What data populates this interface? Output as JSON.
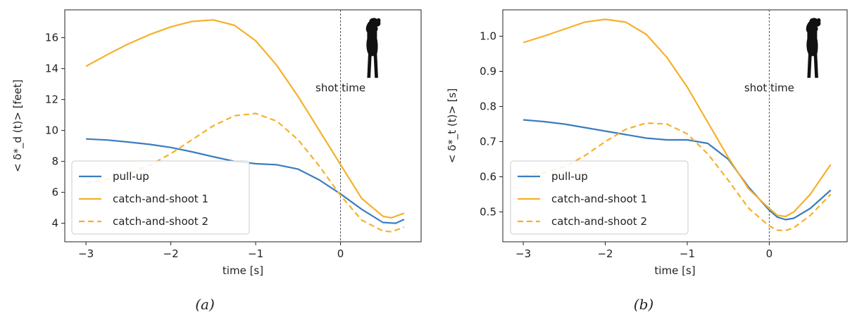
{
  "figure": {
    "captions": [
      "(a)",
      "(b)"
    ]
  },
  "colors": {
    "pull_up": "#3a7dbf",
    "catch_and_shoot": "#f6b02a",
    "axis": "#222222",
    "shot_line": "#555555"
  },
  "icons": [
    "player-silhouette-icon"
  ],
  "chart_data": [
    {
      "type": "line",
      "title": "",
      "xlabel": "time [s]",
      "ylabel": "< δ*_d (t)> [feet]",
      "xlim": [
        -3.25,
        0.95
      ],
      "ylim": [
        2.8,
        17.8
      ],
      "xticks": [
        -3,
        -2,
        -1,
        0
      ],
      "yticks": [
        4,
        6,
        8,
        10,
        12,
        14,
        16
      ],
      "xtick_labels": [
        "−3",
        "−2",
        "−1",
        "0"
      ],
      "ytick_labels": [
        "4",
        "6",
        "8",
        "10",
        "12",
        "14",
        "16"
      ],
      "grid": false,
      "legend": "lower-left",
      "annotation": {
        "text": "shot time",
        "x": 0
      },
      "series": [
        {
          "name": "pull-up",
          "style": "solid",
          "color": "#3a7dbf",
          "x": [
            -3.0,
            -2.75,
            -2.5,
            -2.25,
            -2.0,
            -1.75,
            -1.5,
            -1.25,
            -1.0,
            -0.75,
            -0.5,
            -0.25,
            0.0,
            0.25,
            0.5,
            0.65,
            0.75
          ],
          "y": [
            9.45,
            9.38,
            9.25,
            9.1,
            8.9,
            8.62,
            8.3,
            8.0,
            7.85,
            7.78,
            7.5,
            6.8,
            5.9,
            4.9,
            4.05,
            4.0,
            4.25
          ]
        },
        {
          "name": "catch-and-shoot 1",
          "style": "solid",
          "color": "#f6b02a",
          "x": [
            -3.0,
            -2.75,
            -2.5,
            -2.25,
            -2.0,
            -1.75,
            -1.5,
            -1.25,
            -1.0,
            -0.75,
            -0.5,
            -0.25,
            0.0,
            0.25,
            0.5,
            0.6,
            0.75
          ],
          "y": [
            14.15,
            14.9,
            15.6,
            16.2,
            16.7,
            17.05,
            17.15,
            16.8,
            15.8,
            14.2,
            12.2,
            10.0,
            7.8,
            5.6,
            4.45,
            4.35,
            4.65
          ]
        },
        {
          "name": "catch-and-shoot 2",
          "style": "dashed",
          "color": "#f6b02a",
          "x": [
            -3.0,
            -2.75,
            -2.5,
            -2.25,
            -2.0,
            -1.75,
            -1.5,
            -1.25,
            -1.0,
            -0.75,
            -0.5,
            -0.25,
            0.0,
            0.25,
            0.5,
            0.6,
            0.75
          ],
          "y": [
            6.6,
            6.85,
            7.2,
            7.75,
            8.5,
            9.4,
            10.3,
            10.95,
            11.1,
            10.6,
            9.4,
            7.7,
            5.8,
            4.2,
            3.5,
            3.45,
            3.75
          ]
        }
      ]
    },
    {
      "type": "line",
      "title": "",
      "xlabel": "time [s]",
      "ylabel": "< δ*_t (t)> [s]",
      "xlim": [
        -3.25,
        0.95
      ],
      "ylim": [
        0.415,
        1.075
      ],
      "xticks": [
        -3,
        -2,
        -1,
        0
      ],
      "yticks": [
        0.5,
        0.6,
        0.7,
        0.8,
        0.9,
        1.0
      ],
      "xtick_labels": [
        "−3",
        "−2",
        "−1",
        "0"
      ],
      "ytick_labels": [
        "0.5",
        "0.6",
        "0.7",
        "0.8",
        "0.9",
        "1.0"
      ],
      "grid": false,
      "legend": "lower-left",
      "annotation": {
        "text": "shot time",
        "x": 0
      },
      "series": [
        {
          "name": "pull-up",
          "style": "solid",
          "color": "#3a7dbf",
          "x": [
            -3.0,
            -2.75,
            -2.5,
            -2.25,
            -2.0,
            -1.75,
            -1.5,
            -1.25,
            -1.0,
            -0.75,
            -0.5,
            -0.25,
            0.0,
            0.1,
            0.2,
            0.3,
            0.5,
            0.75
          ],
          "y": [
            0.762,
            0.757,
            0.75,
            0.74,
            0.73,
            0.72,
            0.71,
            0.705,
            0.705,
            0.695,
            0.65,
            0.57,
            0.505,
            0.485,
            0.478,
            0.482,
            0.51,
            0.562
          ]
        },
        {
          "name": "catch-and-shoot 1",
          "style": "solid",
          "color": "#f6b02a",
          "x": [
            -3.0,
            -2.75,
            -2.5,
            -2.25,
            -2.0,
            -1.75,
            -1.5,
            -1.25,
            -1.0,
            -0.75,
            -0.5,
            -0.25,
            0.0,
            0.1,
            0.2,
            0.3,
            0.5,
            0.75
          ],
          "y": [
            0.982,
            1.0,
            1.02,
            1.04,
            1.048,
            1.04,
            1.005,
            0.94,
            0.855,
            0.755,
            0.655,
            0.565,
            0.51,
            0.49,
            0.487,
            0.5,
            0.55,
            0.635
          ]
        },
        {
          "name": "catch-and-shoot 2",
          "style": "dashed",
          "color": "#f6b02a",
          "x": [
            -3.0,
            -2.75,
            -2.5,
            -2.25,
            -2.0,
            -1.75,
            -1.5,
            -1.25,
            -1.0,
            -0.75,
            -0.5,
            -0.25,
            0.0,
            0.1,
            0.2,
            0.3,
            0.5,
            0.75
          ],
          "y": [
            0.605,
            0.612,
            0.628,
            0.66,
            0.7,
            0.735,
            0.753,
            0.75,
            0.722,
            0.665,
            0.59,
            0.51,
            0.46,
            0.448,
            0.447,
            0.455,
            0.49,
            0.55
          ]
        }
      ]
    }
  ]
}
